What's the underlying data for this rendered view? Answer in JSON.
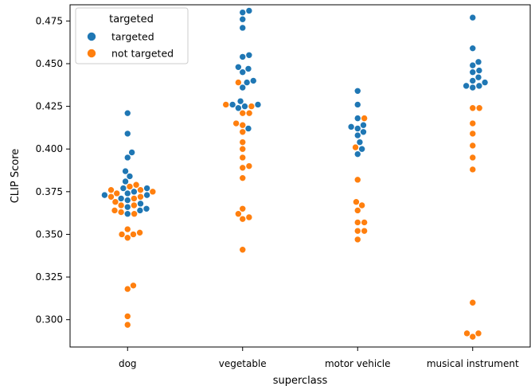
{
  "chart_data": {
    "type": "scatter",
    "subtype": "swarm",
    "xlabel": "superclass",
    "ylabel": "CLIP Score",
    "ylim": [
      0.284,
      0.4845
    ],
    "yticks": [
      0.3,
      0.325,
      0.35,
      0.375,
      0.4,
      0.425,
      0.45,
      0.475
    ],
    "ytick_labels": [
      "0.300",
      "0.325",
      "0.350",
      "0.375",
      "0.400",
      "0.425",
      "0.450",
      "0.475"
    ],
    "categories": [
      "dog",
      "vegetable",
      "motor vehicle",
      "musical instrument"
    ],
    "grid": false,
    "legend": {
      "title": "targeted",
      "placement": "top-left",
      "entries": [
        {
          "label": "targeted",
          "color": "#1f77b4"
        },
        {
          "label": "not targeted",
          "color": "#ff7f0e"
        }
      ]
    },
    "series": [
      {
        "name": "targeted",
        "color": "#1f77b4",
        "values_by_category": [
          [
            0.421,
            0.409,
            0.398,
            0.395,
            0.387,
            0.384,
            0.381,
            0.377,
            0.377,
            0.375,
            0.374,
            0.373,
            0.373,
            0.371,
            0.37,
            0.368,
            0.366,
            0.365,
            0.364,
            0.362
          ],
          [
            0.481,
            0.48,
            0.476,
            0.471,
            0.455,
            0.454,
            0.448,
            0.447,
            0.445,
            0.44,
            0.439,
            0.436,
            0.428,
            0.426,
            0.426,
            0.425,
            0.424,
            0.412
          ],
          [
            0.434,
            0.426,
            0.418,
            0.414,
            0.413,
            0.412,
            0.41,
            0.408,
            0.404,
            0.4,
            0.397
          ],
          [
            0.477,
            0.459,
            0.451,
            0.449,
            0.446,
            0.445,
            0.442,
            0.44,
            0.439,
            0.437,
            0.437,
            0.436
          ]
        ]
      },
      {
        "name": "not targeted",
        "color": "#ff7f0e",
        "values_by_category": [
          [
            0.379,
            0.378,
            0.376,
            0.376,
            0.375,
            0.374,
            0.372,
            0.372,
            0.371,
            0.369,
            0.367,
            0.367,
            0.364,
            0.363,
            0.362,
            0.353,
            0.351,
            0.35,
            0.35,
            0.348,
            0.32,
            0.318,
            0.302,
            0.297
          ],
          [
            0.439,
            0.426,
            0.425,
            0.421,
            0.421,
            0.415,
            0.414,
            0.41,
            0.404,
            0.4,
            0.395,
            0.39,
            0.389,
            0.383,
            0.365,
            0.362,
            0.36,
            0.359,
            0.341
          ],
          [
            0.418,
            0.401,
            0.382,
            0.369,
            0.367,
            0.364,
            0.357,
            0.357,
            0.352,
            0.352,
            0.347
          ],
          [
            0.424,
            0.424,
            0.415,
            0.409,
            0.402,
            0.395,
            0.388,
            0.31,
            0.292,
            0.292,
            0.29
          ]
        ]
      }
    ]
  }
}
